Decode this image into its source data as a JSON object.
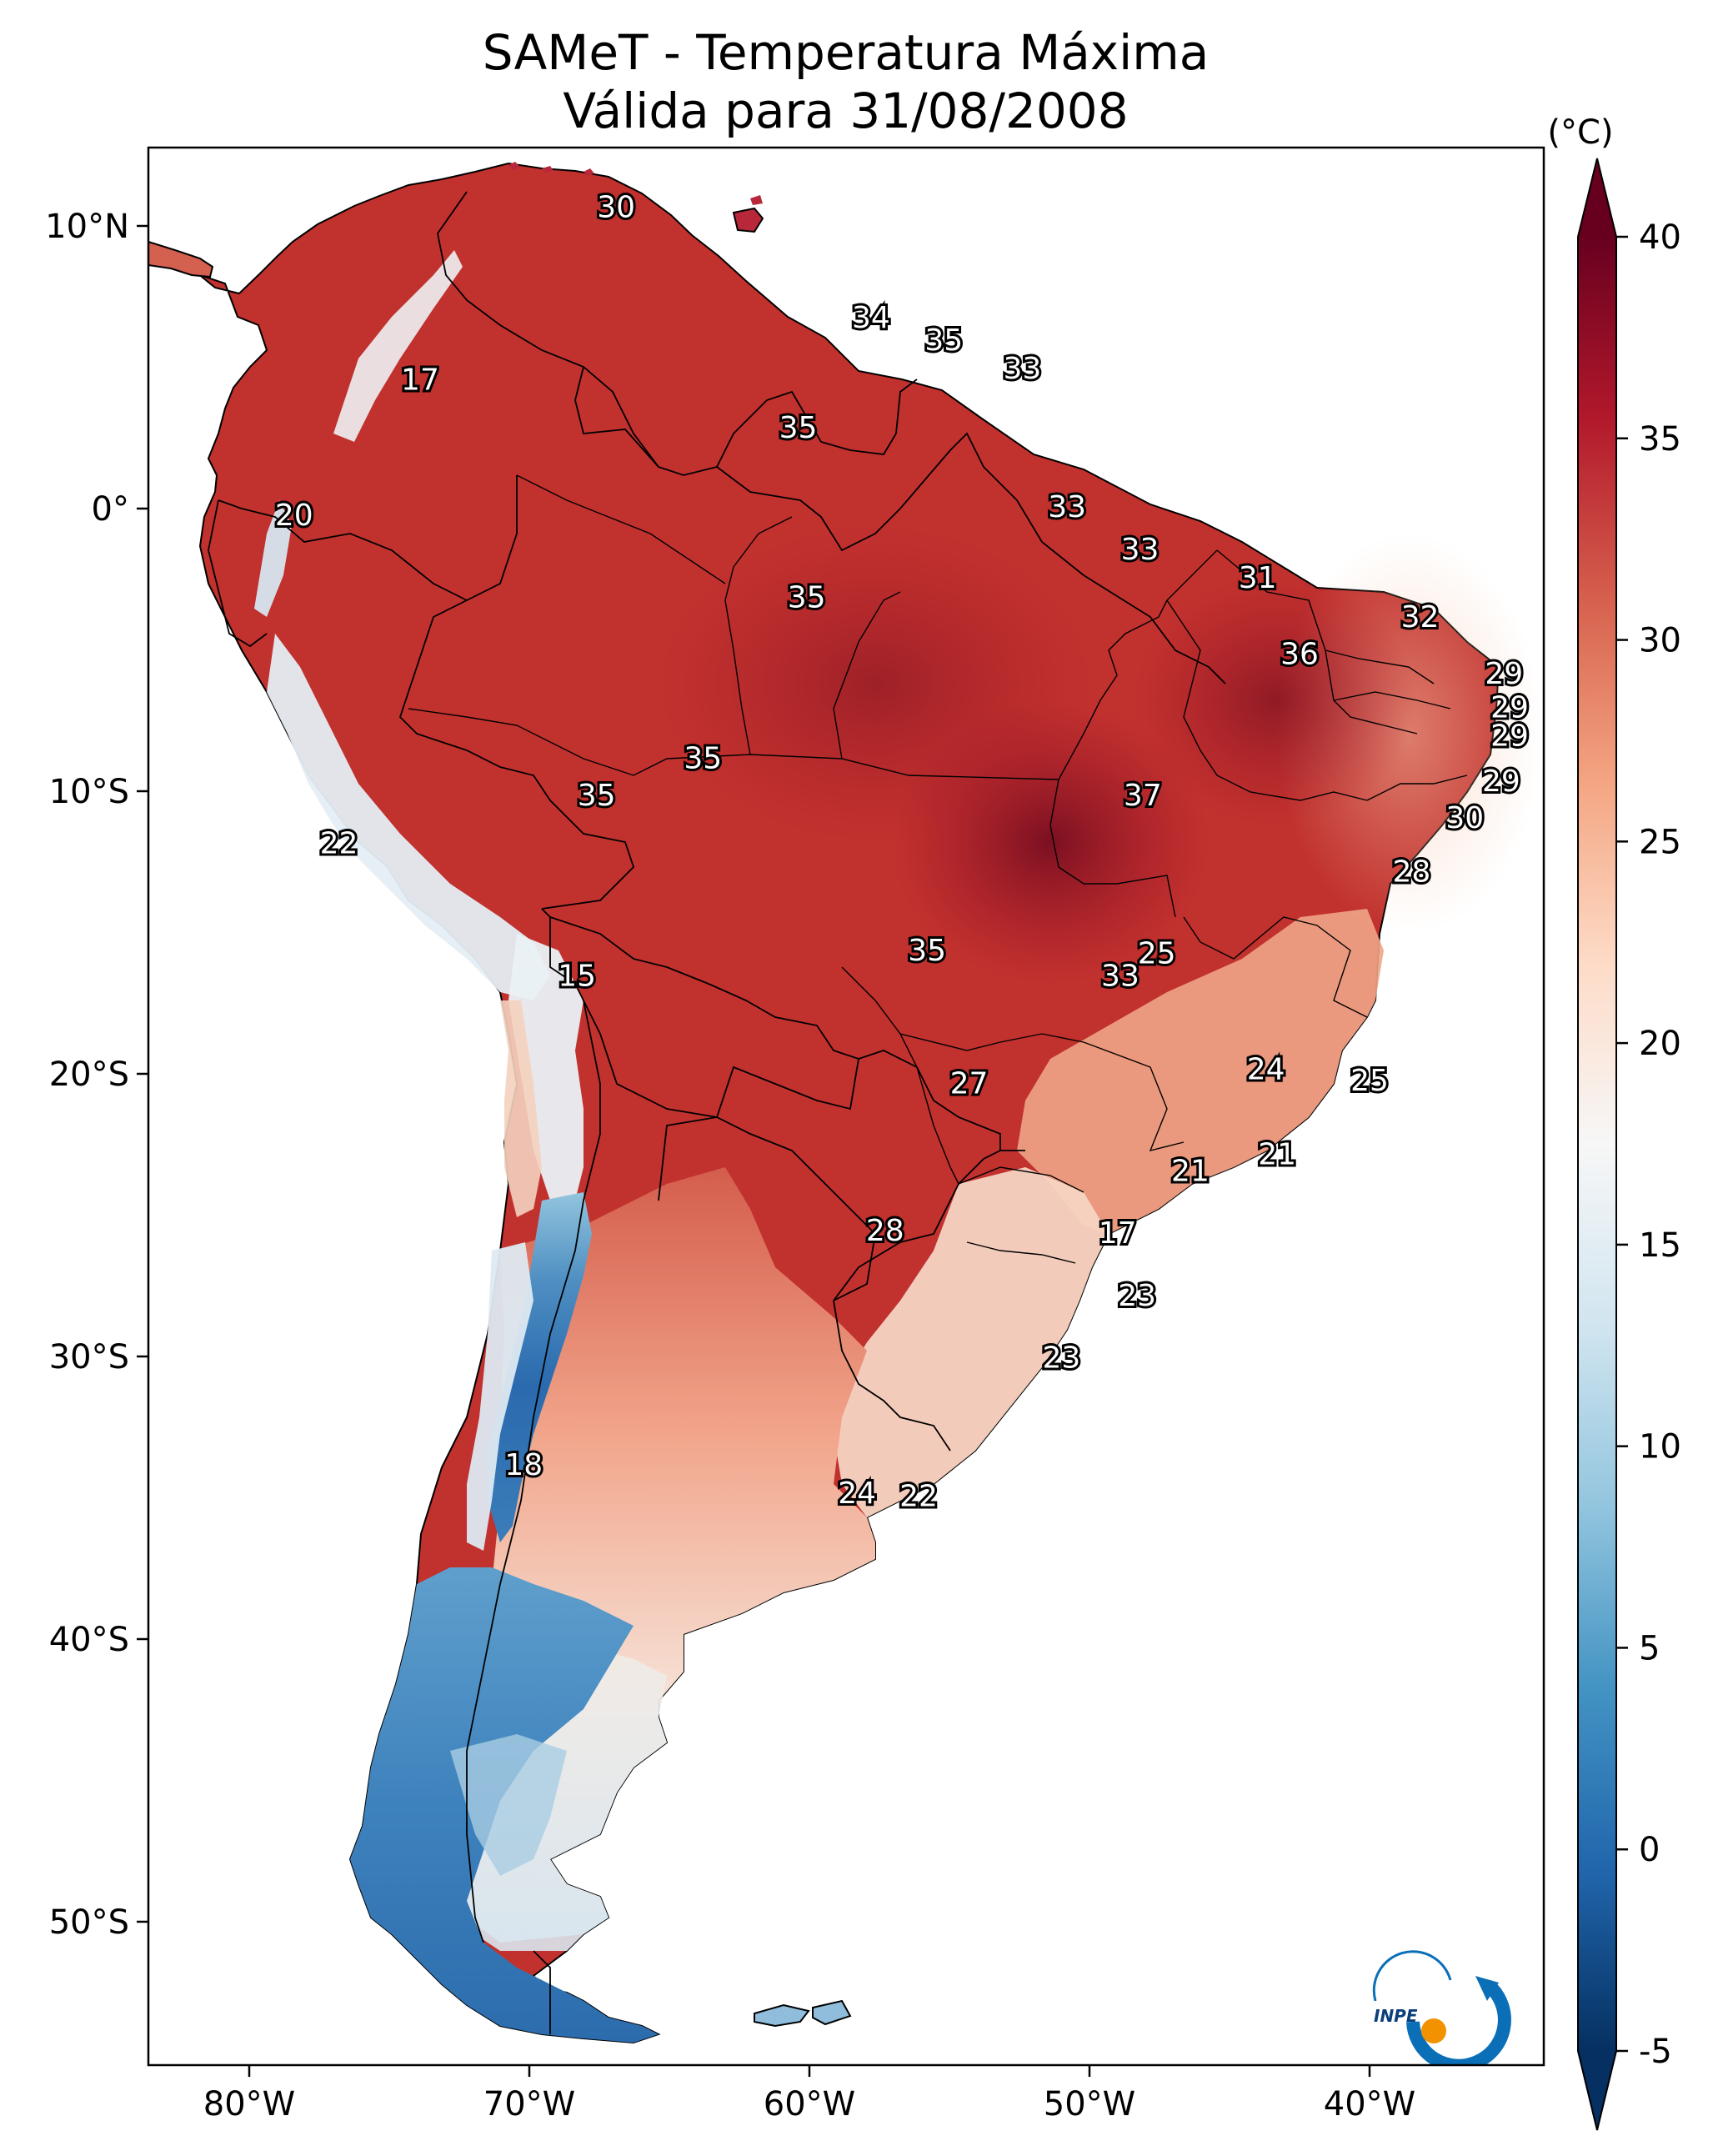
{
  "title": {
    "line1": "SAMeT - Temperatura Máxima",
    "line2": "Válida para 31/08/2008"
  },
  "map": {
    "lon_ticks": [
      "80°W",
      "70°W",
      "60°W",
      "50°W",
      "40°W"
    ],
    "lat_ticks": [
      "10°N",
      "0°",
      "10°S",
      "20°S",
      "30°S",
      "40°S",
      "50°S"
    ]
  },
  "colorbar": {
    "unit": "(°C)",
    "min": -5,
    "max": 40,
    "ticks": [
      "40",
      "35",
      "30",
      "25",
      "20",
      "15",
      "10",
      "5",
      "0",
      "-5"
    ],
    "colors": [
      "#053061",
      "#2166ac",
      "#4393c3",
      "#92c5de",
      "#d1e5f0",
      "#f7f7f7",
      "#fddbc7",
      "#f4a582",
      "#d6604d",
      "#b2182b",
      "#67001f"
    ]
  },
  "contour_labels": [
    {
      "text": "30",
      "lon": -66.9,
      "lat": 10.6
    },
    {
      "text": "34",
      "lon": -57.8,
      "lat": 6.7
    },
    {
      "text": "35",
      "lon": -55.2,
      "lat": 5.9
    },
    {
      "text": "33",
      "lon": -52.4,
      "lat": 4.9
    },
    {
      "text": "17",
      "lon": -73.9,
      "lat": 4.5
    },
    {
      "text": "35",
      "lon": -60.4,
      "lat": 2.8
    },
    {
      "text": "20",
      "lon": -78.4,
      "lat": -0.3
    },
    {
      "text": "33",
      "lon": -50.8,
      "lat": 0.0
    },
    {
      "text": "33",
      "lon": -48.2,
      "lat": -1.5
    },
    {
      "text": "31",
      "lon": -44.0,
      "lat": -2.5
    },
    {
      "text": "35",
      "lon": -60.1,
      "lat": -3.2
    },
    {
      "text": "32",
      "lon": -38.2,
      "lat": -3.9
    },
    {
      "text": "36",
      "lon": -42.5,
      "lat": -5.2
    },
    {
      "text": "29",
      "lon": -35.2,
      "lat": -5.9
    },
    {
      "text": "29",
      "lon": -35.0,
      "lat": -7.1
    },
    {
      "text": "29",
      "lon": -35.0,
      "lat": -8.1
    },
    {
      "text": "35",
      "lon": -63.8,
      "lat": -8.9
    },
    {
      "text": "35",
      "lon": -67.6,
      "lat": -10.2
    },
    {
      "text": "37",
      "lon": -48.1,
      "lat": -10.2
    },
    {
      "text": "29",
      "lon": -35.3,
      "lat": -9.7
    },
    {
      "text": "30",
      "lon": -36.6,
      "lat": -11.0
    },
    {
      "text": "22",
      "lon": -76.8,
      "lat": -11.9
    },
    {
      "text": "28",
      "lon": -38.5,
      "lat": -12.9
    },
    {
      "text": "25",
      "lon": -47.6,
      "lat": -15.8
    },
    {
      "text": "35",
      "lon": -55.8,
      "lat": -15.7
    },
    {
      "text": "33",
      "lon": -48.9,
      "lat": -16.6
    },
    {
      "text": "15",
      "lon": -68.3,
      "lat": -16.6
    },
    {
      "text": "24",
      "lon": -43.7,
      "lat": -19.9
    },
    {
      "text": "25",
      "lon": -40.0,
      "lat": -20.3
    },
    {
      "text": "27",
      "lon": -54.3,
      "lat": -20.4
    },
    {
      "text": "21",
      "lon": -46.4,
      "lat": -23.5
    },
    {
      "text": "21",
      "lon": -43.3,
      "lat": -22.9
    },
    {
      "text": "17",
      "lon": -49.0,
      "lat": -25.7
    },
    {
      "text": "28",
      "lon": -57.3,
      "lat": -25.6
    },
    {
      "text": "23",
      "lon": -48.3,
      "lat": -27.9
    },
    {
      "text": "23",
      "lon": -51.0,
      "lat": -30.1
    },
    {
      "text": "18",
      "lon": -70.2,
      "lat": -33.9
    },
    {
      "text": "24",
      "lon": -58.3,
      "lat": -34.9
    },
    {
      "text": "22",
      "lon": -56.1,
      "lat": -35.0
    }
  ],
  "logo": {
    "text": "INPE"
  }
}
